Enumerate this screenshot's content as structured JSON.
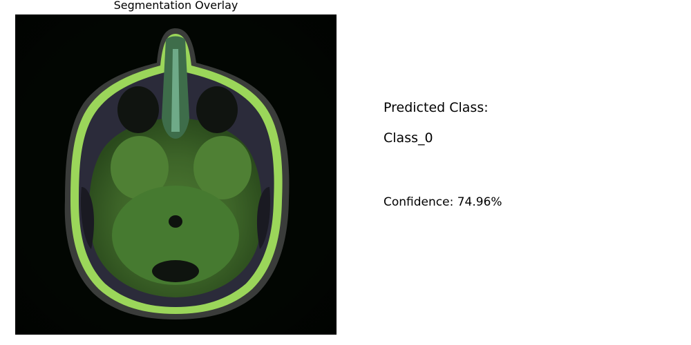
{
  "figure": {
    "title": "Segmentation Overlay",
    "image_subject": "axial brain MRI slice with green segmentation overlay",
    "overlay_color": "#7fb83a"
  },
  "prediction": {
    "heading": "Predicted Class:",
    "class_label": "Class_0",
    "confidence_text": "Confidence: 74.96%",
    "confidence_value": 74.96
  }
}
